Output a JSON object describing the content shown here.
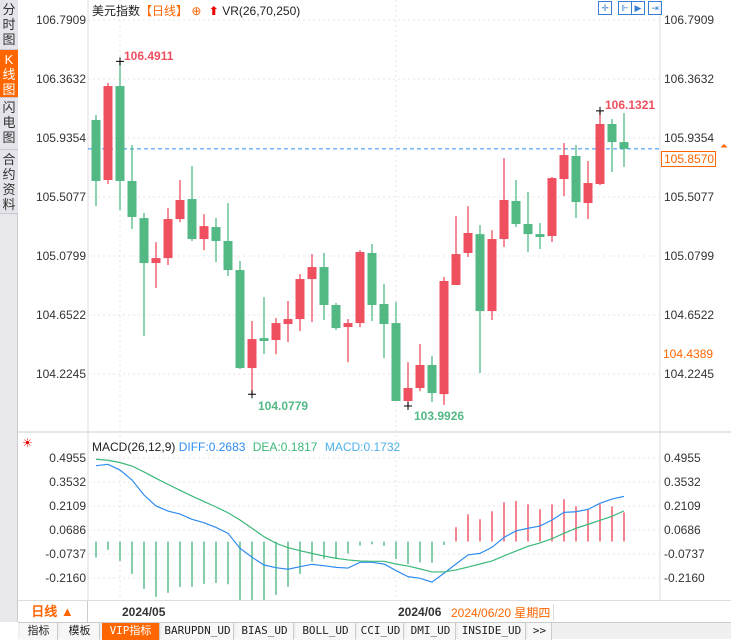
{
  "sidebar": {
    "tabs": [
      {
        "label": "分时图"
      },
      {
        "label": "K线图"
      },
      {
        "label": "闪电图"
      },
      {
        "label": "合约资料"
      }
    ]
  },
  "header": {
    "instrument": "美元指数",
    "period": "【日线】",
    "indicator": "VR(26,70,250)"
  },
  "toolbar": {
    "icons": [
      "crosshair-icon",
      "zoom-range-icon",
      "play-icon",
      "goto-end-icon"
    ]
  },
  "main_axis": {
    "labels": [
      "106.7909",
      "106.3632",
      "105.9354",
      "105.5077",
      "105.0799",
      "104.6522",
      "104.2245"
    ],
    "current_price": "105.8570",
    "marker_price": "104.4389"
  },
  "annotations": {
    "high1": "106.4911",
    "high2": "106.1321",
    "low1": "104.0779",
    "low2": "103.9926"
  },
  "macd": {
    "title": "MACD(26,12,9)",
    "diff": "DIFF:0.2683",
    "dea": "DEA:0.1817",
    "macd": "MACD:0.1732",
    "axis": [
      "0.4955",
      "0.3532",
      "0.2109",
      "0.0686",
      "-0.0737",
      "-0.2160"
    ]
  },
  "datebar": {
    "period": "日线 ▲",
    "d1": "2024/05",
    "d2": "2024/06",
    "cursor": "2024/06/20 星期四"
  },
  "bottom_tabs": [
    {
      "label": "指标"
    },
    {
      "label": "模板"
    },
    {
      "label": "VIP指标"
    },
    {
      "label": "BARUPDN_UD"
    },
    {
      "label": "BIAS_UD"
    },
    {
      "label": "BOLL_UD"
    },
    {
      "label": "CCI_UD"
    },
    {
      "label": "DMI_UD"
    },
    {
      "label": "INSIDE_UD"
    },
    {
      "label": ">>"
    }
  ],
  "colors": {
    "up": "#ef4f5f",
    "down": "#52b985",
    "diff": "#2f8cf0",
    "dea": "#3cb878",
    "accent": "#ff6600"
  },
  "chart_data": {
    "type": "candlestick",
    "price_range": [
      103.9,
      106.7909
    ],
    "ohlc": [
      [
        106.066,
        106.102,
        105.442,
        105.624
      ],
      [
        105.631,
        106.334,
        105.602,
        106.312
      ],
      [
        106.312,
        106.491,
        105.413,
        105.624
      ],
      [
        105.624,
        105.885,
        105.276,
        105.363
      ],
      [
        105.355,
        105.392,
        104.5,
        105.029
      ],
      [
        105.029,
        105.181,
        104.848,
        105.065
      ],
      [
        105.065,
        105.428,
        105.015,
        105.348
      ],
      [
        105.348,
        105.631,
        105.326,
        105.486
      ],
      [
        105.493,
        105.732,
        105.189,
        105.203
      ],
      [
        105.203,
        105.384,
        105.123,
        105.297
      ],
      [
        105.29,
        105.355,
        105.036,
        105.189
      ],
      [
        105.189,
        105.464,
        104.935,
        104.978
      ],
      [
        104.978,
        105.044,
        104.261,
        104.268
      ],
      [
        104.268,
        104.609,
        104.078,
        104.478
      ],
      [
        104.485,
        104.783,
        104.369,
        104.464
      ],
      [
        104.471,
        104.63,
        104.369,
        104.594
      ],
      [
        104.587,
        104.754,
        104.456,
        104.623
      ],
      [
        104.623,
        104.949,
        104.536,
        104.913
      ],
      [
        104.913,
        105.094,
        104.601,
        105.0
      ],
      [
        105.0,
        105.102,
        104.616,
        104.725
      ],
      [
        104.725,
        104.739,
        104.543,
        104.558
      ],
      [
        104.565,
        104.623,
        104.311,
        104.594
      ],
      [
        104.594,
        105.123,
        104.565,
        105.109
      ],
      [
        105.102,
        105.167,
        104.609,
        104.725
      ],
      [
        104.732,
        104.877,
        104.34,
        104.587
      ],
      [
        104.594,
        104.746,
        104.029,
        104.029
      ],
      [
        104.029,
        104.311,
        103.993,
        104.123
      ],
      [
        104.123,
        104.442,
        104.101,
        104.29
      ],
      [
        104.29,
        104.355,
        104.021,
        104.087
      ],
      [
        104.079,
        104.928,
        104.0,
        104.899
      ],
      [
        104.87,
        105.37,
        104.87,
        105.094
      ],
      [
        105.102,
        105.442,
        105.073,
        105.247
      ],
      [
        105.239,
        105.305,
        104.232,
        104.681
      ],
      [
        104.681,
        105.268,
        104.616,
        105.203
      ],
      [
        105.203,
        105.79,
        105.145,
        105.486
      ],
      [
        105.479,
        105.631,
        105.29,
        105.312
      ],
      [
        105.312,
        105.544,
        105.109,
        105.239
      ],
      [
        105.239,
        105.319,
        105.131,
        105.218
      ],
      [
        105.225,
        105.653,
        105.181,
        105.645
      ],
      [
        105.638,
        105.899,
        105.515,
        105.812
      ],
      [
        105.805,
        105.885,
        105.355,
        105.471
      ],
      [
        105.464,
        105.769,
        105.348,
        105.609
      ],
      [
        105.602,
        106.132,
        105.595,
        106.037
      ],
      [
        106.037,
        106.073,
        105.689,
        105.906
      ],
      [
        105.906,
        106.117,
        105.725,
        105.857
      ]
    ],
    "macd_range": [
      -0.3,
      0.4955
    ],
    "diff": [
      0.45,
      0.458,
      0.424,
      0.365,
      0.276,
      0.211,
      0.181,
      0.163,
      0.132,
      0.112,
      0.084,
      0.049,
      -0.04,
      -0.093,
      -0.139,
      -0.155,
      -0.164,
      -0.149,
      -0.135,
      -0.143,
      -0.153,
      -0.157,
      -0.123,
      -0.123,
      -0.133,
      -0.172,
      -0.208,
      -0.218,
      -0.24,
      -0.188,
      -0.133,
      -0.079,
      -0.07,
      -0.034,
      0.025,
      0.063,
      0.079,
      0.092,
      0.128,
      0.173,
      0.177,
      0.191,
      0.227,
      0.252,
      0.268
    ],
    "dea": [
      0.488,
      0.482,
      0.468,
      0.448,
      0.413,
      0.375,
      0.339,
      0.304,
      0.27,
      0.237,
      0.205,
      0.171,
      0.128,
      0.079,
      0.029,
      -0.01,
      -0.036,
      -0.054,
      -0.07,
      -0.086,
      -0.099,
      -0.109,
      -0.115,
      -0.117,
      -0.117,
      -0.133,
      -0.145,
      -0.162,
      -0.18,
      -0.18,
      -0.168,
      -0.151,
      -0.133,
      -0.115,
      -0.085,
      -0.056,
      -0.028,
      -0.008,
      0.017,
      0.049,
      0.079,
      0.102,
      0.126,
      0.15,
      0.182
    ],
    "hist": [
      -0.095,
      -0.049,
      -0.115,
      -0.192,
      -0.281,
      -0.328,
      -0.304,
      -0.269,
      -0.269,
      -0.251,
      -0.245,
      -0.253,
      -0.346,
      -0.35,
      -0.35,
      -0.316,
      -0.269,
      -0.192,
      -0.119,
      -0.103,
      -0.103,
      -0.071,
      -0.024,
      -0.016,
      -0.026,
      -0.103,
      -0.134,
      -0.123,
      -0.126,
      -0.02,
      0.085,
      0.162,
      0.132,
      0.18,
      0.233,
      0.241,
      0.221,
      0.192,
      0.221,
      0.251,
      0.209,
      0.192,
      0.221,
      0.209,
      0.173
    ]
  }
}
